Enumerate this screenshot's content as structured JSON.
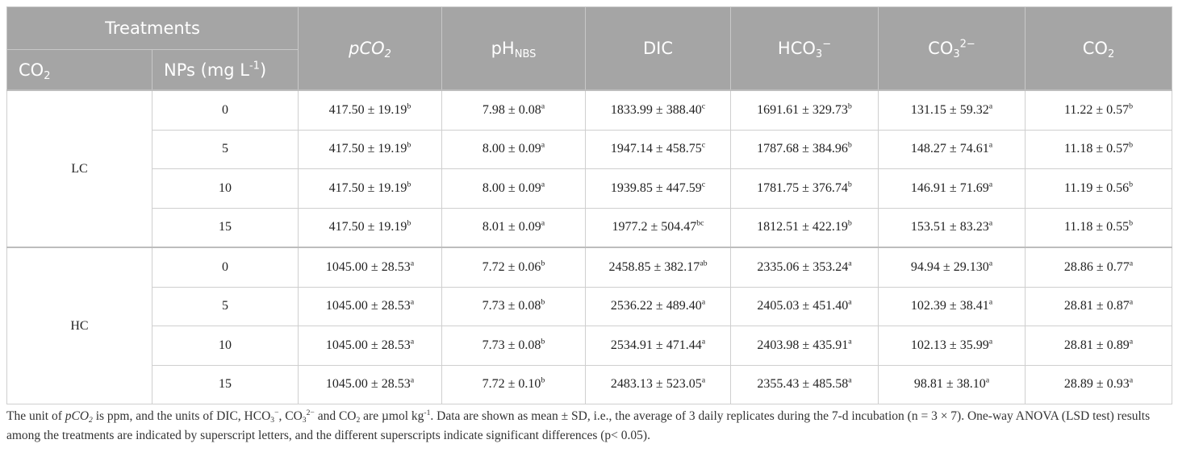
{
  "table": {
    "header": {
      "treatments": "Treatments",
      "co2": {
        "main": "CO",
        "sub": "2"
      },
      "nps": {
        "main": "NPs (mg L",
        "sup": "-1",
        "tail": ")"
      },
      "columns": [
        {
          "main": "pCO",
          "sub": "2",
          "italic": true
        },
        {
          "main": "pH",
          "sub": "NBS"
        },
        {
          "main": "DIC"
        },
        {
          "main": "HCO",
          "sub": "3",
          "sup": "−"
        },
        {
          "main": "CO",
          "sub": "3",
          "sup": "2−"
        },
        {
          "main": "CO",
          "sub": "2"
        }
      ]
    },
    "groups": [
      {
        "label": "LC",
        "rows": [
          {
            "np": "0",
            "cells": [
              {
                "v": "417.50 ± 19.19",
                "s": "b"
              },
              {
                "v": "7.98 ± 0.08",
                "s": "a"
              },
              {
                "v": "1833.99 ± 388.40",
                "s": "c"
              },
              {
                "v": "1691.61 ± 329.73",
                "s": "b"
              },
              {
                "v": "131.15 ± 59.32",
                "s": "a"
              },
              {
                "v": "11.22 ± 0.57",
                "s": "b"
              }
            ]
          },
          {
            "np": "5",
            "cells": [
              {
                "v": "417.50 ± 19.19",
                "s": "b"
              },
              {
                "v": "8.00 ± 0.09",
                "s": "a"
              },
              {
                "v": "1947.14 ± 458.75",
                "s": "c"
              },
              {
                "v": "1787.68 ± 384.96",
                "s": "b"
              },
              {
                "v": "148.27 ± 74.61",
                "s": "a"
              },
              {
                "v": "11.18 ± 0.57",
                "s": "b"
              }
            ]
          },
          {
            "np": "10",
            "cells": [
              {
                "v": "417.50 ± 19.19",
                "s": "b"
              },
              {
                "v": "8.00 ± 0.09",
                "s": "a"
              },
              {
                "v": "1939.85 ± 447.59",
                "s": "c"
              },
              {
                "v": "1781.75 ± 376.74",
                "s": "b"
              },
              {
                "v": "146.91 ± 71.69",
                "s": "a"
              },
              {
                "v": "11.19 ± 0.56",
                "s": "b"
              }
            ]
          },
          {
            "np": "15",
            "cells": [
              {
                "v": "417.50 ± 19.19",
                "s": "b"
              },
              {
                "v": "8.01 ± 0.09",
                "s": "a"
              },
              {
                "v": "1977.2 ± 504.47",
                "s": "bc"
              },
              {
                "v": "1812.51 ± 422.19",
                "s": "b"
              },
              {
                "v": "153.51 ± 83.23",
                "s": "a"
              },
              {
                "v": "11.18 ± 0.55",
                "s": "b"
              }
            ]
          }
        ]
      },
      {
        "label": "HC",
        "rows": [
          {
            "np": "0",
            "cells": [
              {
                "v": "1045.00 ± 28.53",
                "s": "a"
              },
              {
                "v": "7.72 ± 0.06",
                "s": "b"
              },
              {
                "v": "2458.85 ± 382.17",
                "s": "ab"
              },
              {
                "v": "2335.06 ± 353.24",
                "s": "a"
              },
              {
                "v": "94.94 ± 29.130",
                "s": "a"
              },
              {
                "v": "28.86 ± 0.77",
                "s": "a"
              }
            ]
          },
          {
            "np": "5",
            "cells": [
              {
                "v": "1045.00 ± 28.53",
                "s": "a"
              },
              {
                "v": "7.73 ± 0.08",
                "s": "b"
              },
              {
                "v": "2536.22 ± 489.40",
                "s": "a"
              },
              {
                "v": "2405.03 ± 451.40",
                "s": "a"
              },
              {
                "v": "102.39 ± 38.41",
                "s": "a"
              },
              {
                "v": "28.81 ± 0.87",
                "s": "a"
              }
            ]
          },
          {
            "np": "10",
            "cells": [
              {
                "v": "1045.00 ± 28.53",
                "s": "a"
              },
              {
                "v": "7.73 ± 0.08",
                "s": "b"
              },
              {
                "v": "2534.91 ± 471.44",
                "s": "a"
              },
              {
                "v": "2403.98 ± 435.91",
                "s": "a"
              },
              {
                "v": "102.13 ± 35.99",
                "s": "a"
              },
              {
                "v": "28.81 ± 0.89",
                "s": "a"
              }
            ]
          },
          {
            "np": "15",
            "cells": [
              {
                "v": "1045.00 ± 28.53",
                "s": "a"
              },
              {
                "v": "7.72 ± 0.10",
                "s": "b"
              },
              {
                "v": "2483.13 ± 523.05",
                "s": "a"
              },
              {
                "v": "2355.43 ± 485.58",
                "s": "a"
              },
              {
                "v": "98.81 ± 38.10",
                "s": "a"
              },
              {
                "v": "28.89 ± 0.93",
                "s": "a"
              }
            ]
          }
        ]
      }
    ]
  },
  "footnote": [
    {
      "text": "The unit of "
    },
    {
      "text": "pCO",
      "style": "i"
    },
    {
      "text": "2",
      "style": "isub"
    },
    {
      "text": " is ppm, and the units of DIC, HCO"
    },
    {
      "text": "3",
      "style": "sub"
    },
    {
      "text": "−",
      "style": "sup"
    },
    {
      "text": ", CO"
    },
    {
      "text": "3",
      "style": "sub"
    },
    {
      "text": "2−",
      "style": "sup"
    },
    {
      "text": " and CO"
    },
    {
      "text": "2",
      "style": "sub"
    },
    {
      "text": " are µmol kg"
    },
    {
      "text": "-1",
      "style": "sup"
    },
    {
      "text": ". Data are shown as mean ± SD, i.e., the average of 3 daily replicates during the 7-d incubation (n = 3 × 7). One-way ANOVA (LSD test) results among the treatments are indicated by superscript letters, and the different superscripts indicate significant differences (p< 0.05)."
    }
  ]
}
